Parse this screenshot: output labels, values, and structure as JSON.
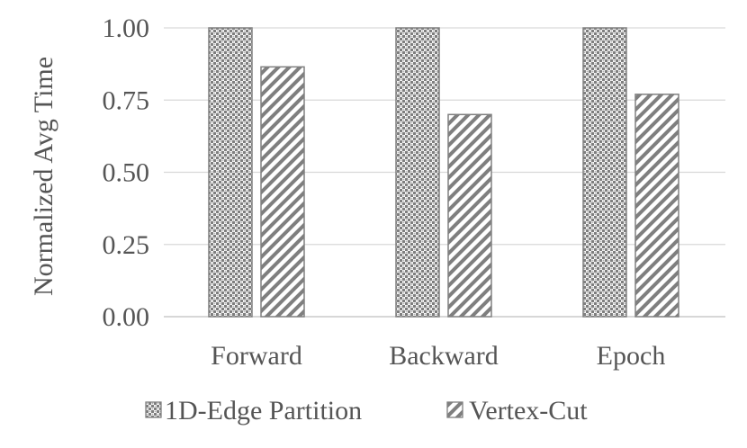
{
  "chart_data": {
    "type": "bar",
    "title": "",
    "xlabel": "",
    "ylabel": "Normalized Avg Time",
    "categories": [
      "Forward",
      "Backward",
      "Epoch"
    ],
    "series": [
      {
        "name": "1D-Edge Partition",
        "values": [
          1.0,
          1.0,
          1.0
        ],
        "pattern": "checker",
        "color": "#808080"
      },
      {
        "name": "Vertex-Cut",
        "values": [
          0.865,
          0.7,
          0.77
        ],
        "pattern": "diagonal-hatch",
        "color": "#808080"
      }
    ],
    "ylim": [
      0,
      1.0
    ],
    "yticks": [
      "0.00",
      "0.25",
      "0.50",
      "0.75",
      "1.00"
    ],
    "grid": true,
    "legend_position": "bottom"
  }
}
